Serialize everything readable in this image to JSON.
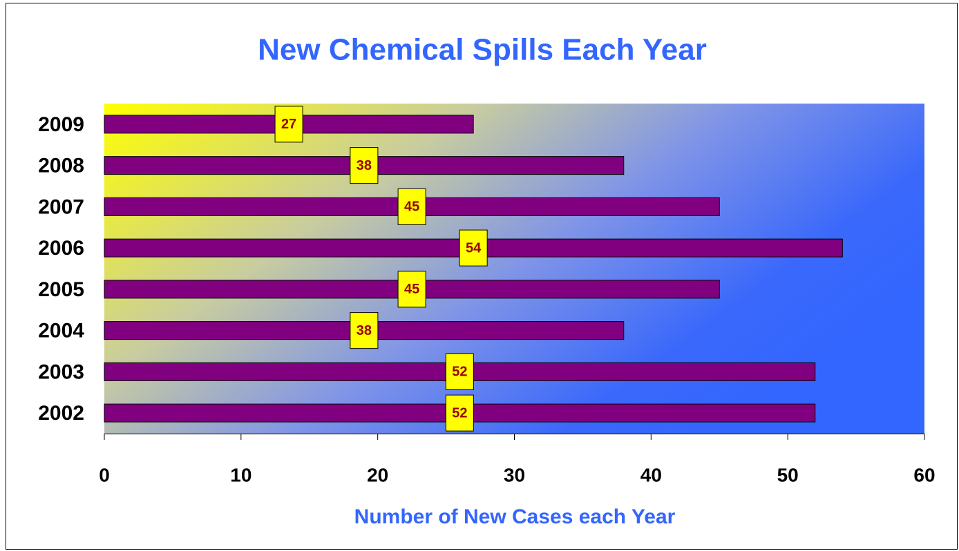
{
  "chart_data": {
    "type": "bar",
    "orientation": "horizontal",
    "title": "New Chemical Spills Each Year",
    "xlabel": "Number of New Cases each Year",
    "categories": [
      "2002",
      "2003",
      "2004",
      "2005",
      "2006",
      "2007",
      "2008",
      "2009"
    ],
    "values": [
      52,
      52,
      38,
      45,
      54,
      45,
      38,
      27
    ],
    "color": "#800080",
    "xlim": [
      0,
      60
    ],
    "xticks": [
      0,
      10,
      20,
      30,
      40,
      50,
      60
    ],
    "grid": false
  }
}
